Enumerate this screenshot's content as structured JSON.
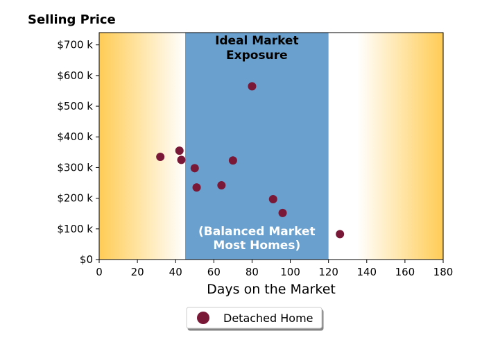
{
  "chart_data": {
    "type": "scatter",
    "title": "Selling Price",
    "xlabel": "Days on the Market",
    "ylabel": "",
    "xlim": [
      0,
      180
    ],
    "ylim": [
      0,
      740000
    ],
    "xticks": [
      0,
      20,
      40,
      60,
      80,
      100,
      120,
      140,
      160,
      180
    ],
    "xtick_labels": [
      "0",
      "20",
      "40",
      "60",
      "80",
      "100",
      "120",
      "140",
      "160",
      "180"
    ],
    "yticks": [
      0,
      100000,
      200000,
      300000,
      400000,
      500000,
      600000,
      700000
    ],
    "ytick_labels": [
      "$0",
      "$100 k",
      "$200 k",
      "$300 k",
      "$400 k",
      "$500 k",
      "$600 k",
      "$700 k"
    ],
    "grid": false,
    "legend_placement": "bottom-center",
    "bands": [
      {
        "x_from": 45,
        "x_to": 120,
        "color": "#6aa0ce",
        "label_top": [
          "Ideal Market",
          "Exposure"
        ],
        "label_top_color": "#000000",
        "label_bottom": [
          "(Balanced Market",
          "Most Homes)"
        ],
        "label_bottom_color": "#ffffff"
      }
    ],
    "background_gradient": {
      "edge_color": "#ffcc55",
      "center_color": "#ffffff"
    },
    "series": [
      {
        "name": "Detached Home",
        "color": "#7a1838",
        "points": [
          {
            "x": 32,
            "y": 335000
          },
          {
            "x": 42,
            "y": 355000
          },
          {
            "x": 43,
            "y": 325000
          },
          {
            "x": 50,
            "y": 298000
          },
          {
            "x": 51,
            "y": 235000
          },
          {
            "x": 64,
            "y": 242000
          },
          {
            "x": 70,
            "y": 323000
          },
          {
            "x": 80,
            "y": 565000
          },
          {
            "x": 91,
            "y": 197000
          },
          {
            "x": 96,
            "y": 152000
          },
          {
            "x": 126,
            "y": 83000
          }
        ]
      }
    ]
  }
}
